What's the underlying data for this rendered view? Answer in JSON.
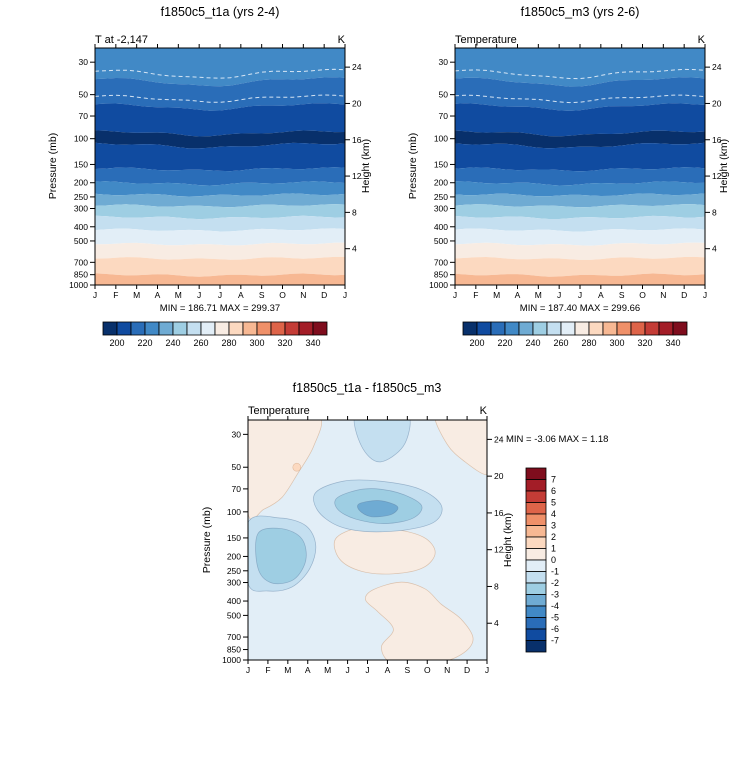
{
  "figure": {
    "background": "#ffffff"
  },
  "palette": {
    "name": "blue-white-red-diverging",
    "colors": [
      "#08306b",
      "#104ba0",
      "#2a6db8",
      "#4189c6",
      "#6fabd3",
      "#9ecee3",
      "#c4dff0",
      "#e2eef7",
      "#f8ece3",
      "#fcd9c0",
      "#f7b893",
      "#ef9069",
      "#de6449",
      "#c43c36",
      "#a31d27",
      "#7f0d1d"
    ]
  },
  "axes": {
    "ylabel_left": "Pressure (mb)",
    "ylabel_right": "Height (km)",
    "pressure_ticks": [
      30,
      50,
      70,
      100,
      150,
      200,
      250,
      300,
      400,
      500,
      700,
      850,
      1000
    ],
    "height_ticks": [
      24,
      20,
      16,
      12,
      8,
      4
    ],
    "months": [
      "J",
      "F",
      "M",
      "A",
      "M",
      "J",
      "J",
      "A",
      "S",
      "O",
      "N",
      "D",
      "J"
    ],
    "pressure_top_mb": 24,
    "pressure_bottom_mb": 1000,
    "scale_height_km": 7
  },
  "panels": [
    {
      "title": "f1850c5_t1a (yrs 2-4)",
      "subtitle": "T at -2,147",
      "units": "K",
      "minmax": "MIN = 186.71 MAX = 299.37"
    },
    {
      "title": "f1850c5_m3 (yrs 2-6)",
      "subtitle": "Temperature",
      "units": "K",
      "minmax": "MIN = 187.40 MAX = 299.66"
    },
    {
      "title": "f1850c5_t1a - f1850c5_m3",
      "subtitle": "Temperature",
      "units": "K",
      "minmax": "MIN = -3.06 MAX =  1.18"
    }
  ],
  "chart_data": [
    {
      "type": "heatmap",
      "panel": "top-left",
      "title": "f1850c5_t1a (yrs 2-4)",
      "field": "T at -2,147",
      "units": "K",
      "x_categories": [
        "J",
        "F",
        "M",
        "A",
        "M",
        "J",
        "J",
        "A",
        "S",
        "O",
        "N",
        "D",
        "J"
      ],
      "y_pressure_ticks_mb": [
        30,
        50,
        70,
        100,
        150,
        200,
        250,
        300,
        400,
        500,
        700,
        850,
        1000
      ],
      "y2_height_ticks_km": [
        24,
        20,
        16,
        12,
        8,
        4
      ],
      "y_range_mb": [
        24,
        1000
      ],
      "y_scale": "log",
      "stats": {
        "min": 186.71,
        "max": 299.37
      },
      "contour_interval_K": 10,
      "colorbar": {
        "orientation": "horizontal",
        "range": [
          190,
          350
        ],
        "labels": [
          200,
          220,
          240,
          260,
          280,
          300,
          320,
          340
        ]
      },
      "mean_profile": {
        "pressure_mb": [
          24,
          30,
          50,
          70,
          100,
          150,
          200,
          250,
          300,
          400,
          500,
          700,
          850,
          1000
        ],
        "temperature_K": [
          228,
          226,
          215,
          205,
          198,
          207,
          220,
          232,
          243,
          258,
          268,
          283,
          290,
          296
        ]
      },
      "annual_cycle": "stratospheric contours dip downward near mid-year (May-Aug)"
    },
    {
      "type": "heatmap",
      "panel": "top-right",
      "title": "f1850c5_m3 (yrs 2-6)",
      "field": "Temperature",
      "units": "K",
      "x_categories": [
        "J",
        "F",
        "M",
        "A",
        "M",
        "J",
        "J",
        "A",
        "S",
        "O",
        "N",
        "D",
        "J"
      ],
      "y_pressure_ticks_mb": [
        30,
        50,
        70,
        100,
        150,
        200,
        250,
        300,
        400,
        500,
        700,
        850,
        1000
      ],
      "y2_height_ticks_km": [
        24,
        20,
        16,
        12,
        8,
        4
      ],
      "y_range_mb": [
        24,
        1000
      ],
      "y_scale": "log",
      "stats": {
        "min": 187.4,
        "max": 299.66
      },
      "contour_interval_K": 10,
      "colorbar": {
        "orientation": "horizontal",
        "range": [
          190,
          350
        ],
        "labels": [
          200,
          220,
          240,
          260,
          280,
          300,
          320,
          340
        ]
      },
      "mean_profile": {
        "pressure_mb": [
          24,
          30,
          50,
          70,
          100,
          150,
          200,
          250,
          300,
          400,
          500,
          700,
          850,
          1000
        ],
        "temperature_K": [
          228,
          226,
          215,
          205,
          198,
          207,
          220,
          232,
          243,
          258,
          268,
          283,
          290,
          296
        ]
      },
      "annual_cycle": "stratospheric contours dip downward near mid-year (May-Aug)"
    },
    {
      "type": "heatmap",
      "panel": "bottom-difference",
      "title": "f1850c5_t1a - f1850c5_m3",
      "field": "Temperature",
      "units": "K",
      "x_categories": [
        "J",
        "F",
        "M",
        "A",
        "M",
        "J",
        "J",
        "A",
        "S",
        "O",
        "N",
        "D",
        "J"
      ],
      "y_pressure_ticks_mb": [
        30,
        50,
        70,
        100,
        150,
        200,
        250,
        300,
        400,
        500,
        700,
        850,
        1000
      ],
      "y2_height_ticks_km": [
        24,
        20,
        16,
        12,
        8,
        4
      ],
      "y_range_mb": [
        24,
        1000
      ],
      "y_scale": "log",
      "stats": {
        "min": -3.06,
        "max": 1.18
      },
      "contour_interval_K": 1,
      "colorbar": {
        "orientation": "vertical",
        "range": [
          -8,
          8
        ],
        "labels": [
          7,
          6,
          5,
          4,
          3,
          2,
          1,
          0,
          -1,
          -2,
          -3,
          -4,
          -5,
          -6,
          -7
        ]
      },
      "background_value": -0.5,
      "regions": [
        {
          "value": 0.5,
          "points": [
            [
              0,
              22
            ],
            [
              1.6,
              22
            ],
            [
              3.6,
              23
            ],
            [
              3.3,
              36
            ],
            [
              2.5,
              55
            ],
            [
              1.7,
              80
            ],
            [
              0.8,
              96
            ],
            [
              0,
              102
            ]
          ]
        },
        {
          "value": 0.5,
          "points": [
            [
              9.4,
              22
            ],
            [
              10.8,
              22
            ],
            [
              12,
              22
            ],
            [
              12,
              40
            ],
            [
              12,
              56
            ],
            [
              10.9,
              46
            ],
            [
              10,
              35
            ]
          ]
        },
        {
          "value": 0.5,
          "points": [
            [
              4.4,
              152
            ],
            [
              5.6,
              128
            ],
            [
              7.2,
              130
            ],
            [
              8.8,
              148
            ],
            [
              9.4,
              188
            ],
            [
              8.8,
              238
            ],
            [
              7.3,
              262
            ],
            [
              5.7,
              252
            ],
            [
              4.6,
              208
            ]
          ]
        },
        {
          "value": 0.5,
          "points": [
            [
              6.3,
              335
            ],
            [
              7.7,
              298
            ],
            [
              8.9,
              332
            ],
            [
              9.7,
              420
            ],
            [
              10.7,
              530
            ],
            [
              11.3,
              720
            ],
            [
              10.7,
              920
            ],
            [
              9.3,
              1060
            ],
            [
              7.3,
              1060
            ],
            [
              6.7,
              820
            ],
            [
              7.3,
              620
            ],
            [
              6.5,
              470
            ],
            [
              5.9,
              392
            ]
          ]
        },
        {
          "value": -1.5,
          "points": [
            [
              5.4,
              22
            ],
            [
              7.0,
              22
            ],
            [
              8.1,
              23
            ],
            [
              7.8,
              36
            ],
            [
              6.6,
              46
            ],
            [
              5.7,
              36
            ]
          ]
        },
        {
          "value": -1.5,
          "points": [
            [
              3.4,
              74
            ],
            [
              4.8,
              62
            ],
            [
              6.6,
              62
            ],
            [
              8.6,
              70
            ],
            [
              9.7,
              90
            ],
            [
              9.4,
              116
            ],
            [
              8.0,
              132
            ],
            [
              6.0,
              136
            ],
            [
              4.5,
              124
            ],
            [
              3.5,
              98
            ]
          ]
        },
        {
          "value": -2.5,
          "points": [
            [
              4.5,
              80
            ],
            [
              5.9,
              70
            ],
            [
              7.5,
              74
            ],
            [
              8.7,
              90
            ],
            [
              8.3,
              110
            ],
            [
              6.9,
              120
            ],
            [
              5.4,
              112
            ],
            [
              4.5,
              96
            ]
          ]
        },
        {
          "value": -3.05,
          "points": [
            [
              5.6,
              88
            ],
            [
              6.6,
              84
            ],
            [
              7.5,
              92
            ],
            [
              7.2,
              104
            ],
            [
              6.2,
              108
            ],
            [
              5.6,
              98
            ]
          ]
        },
        {
          "value": -1.5,
          "points": [
            [
              0,
              118
            ],
            [
              1.6,
              110
            ],
            [
              2.9,
              124
            ],
            [
              3.4,
              168
            ],
            [
              3.1,
              242
            ],
            [
              2.2,
              322
            ],
            [
              1.0,
              342
            ],
            [
              0,
              304
            ]
          ]
        },
        {
          "value": -2.2,
          "points": [
            [
              0.5,
              140
            ],
            [
              1.7,
              130
            ],
            [
              2.7,
              152
            ],
            [
              2.9,
              212
            ],
            [
              2.3,
              286
            ],
            [
              1.2,
              302
            ],
            [
              0.5,
              240
            ]
          ]
        },
        {
          "value": 1.1,
          "circle": [
            2.45,
            50
          ],
          "radius_px": 4
        }
      ]
    }
  ]
}
